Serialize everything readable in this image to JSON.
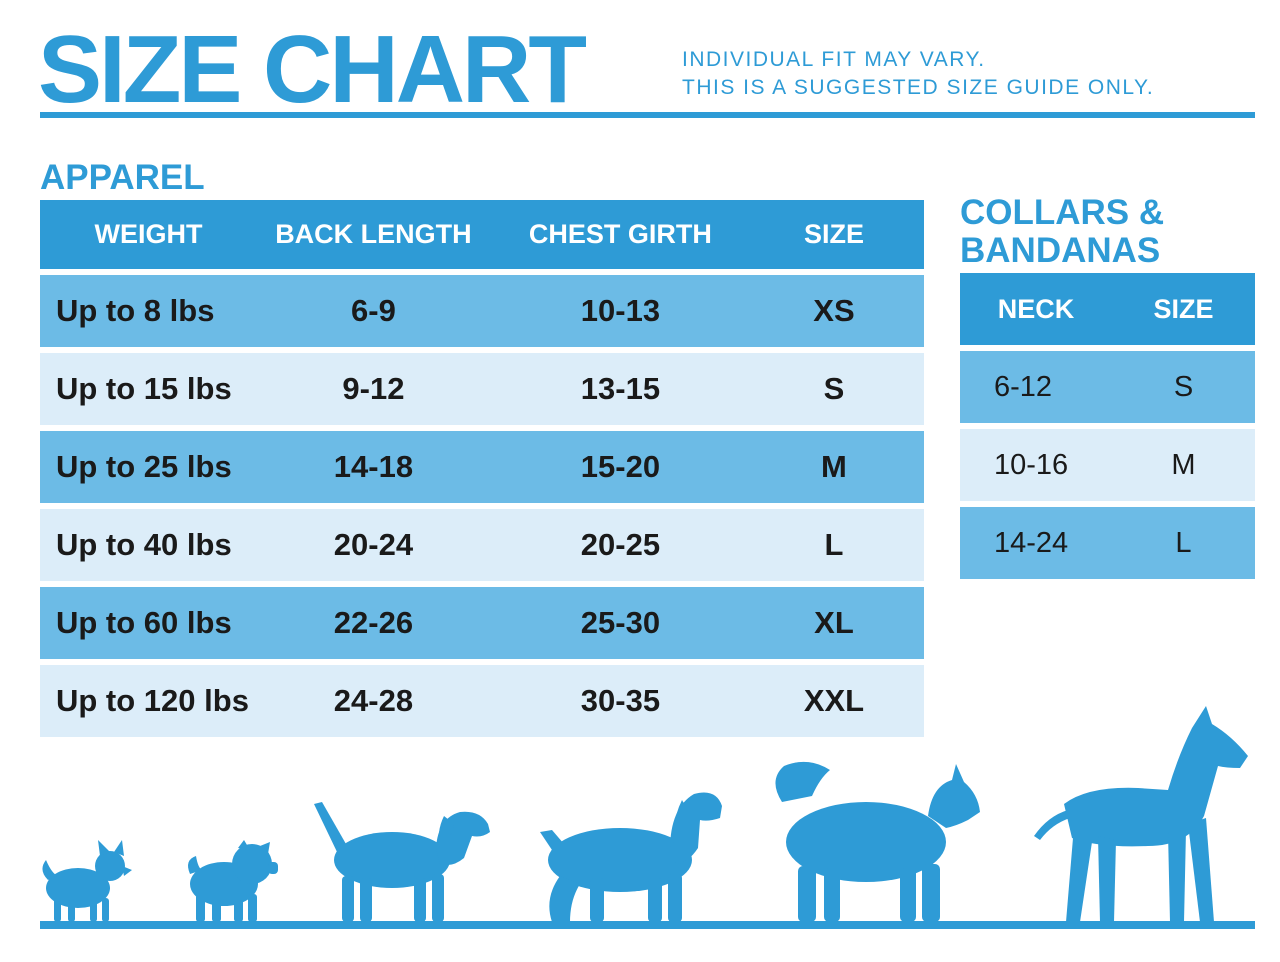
{
  "header": {
    "title": "SIZE CHART",
    "note_line1": "INDIVIDUAL FIT MAY VARY.",
    "note_line2": "THIS IS A SUGGESTED SIZE GUIDE ONLY."
  },
  "apparel": {
    "title": "APPAREL",
    "columns": [
      "WEIGHT",
      "BACK LENGTH",
      "CHEST GIRTH",
      "SIZE"
    ],
    "rows": [
      [
        "Up to 8 lbs",
        "6-9",
        "10-13",
        "XS"
      ],
      [
        "Up to 15 lbs",
        "9-12",
        "13-15",
        "S"
      ],
      [
        "Up to 25 lbs",
        "14-18",
        "15-20",
        "M"
      ],
      [
        "Up to 40 lbs",
        "20-24",
        "20-25",
        "L"
      ],
      [
        "Up to 60 lbs",
        "22-26",
        "25-30",
        "XL"
      ],
      [
        "Up to 120 lbs",
        "24-28",
        "30-35",
        "XXL"
      ]
    ]
  },
  "collars": {
    "title_line1": "COLLARS &",
    "title_line2": "BANDANAS",
    "columns": [
      "NECK",
      "SIZE"
    ],
    "rows": [
      [
        "6-12",
        "S"
      ],
      [
        "10-16",
        "M"
      ],
      [
        "14-24",
        "L"
      ]
    ]
  },
  "dogs": [
    "chihuahua-silhouette",
    "pug-silhouette",
    "beagle-silhouette",
    "spaniel-silhouette",
    "husky-silhouette",
    "great-dane-silhouette"
  ],
  "colors": {
    "accent": "#2e9bd6",
    "row_dark": "#6cbbe6",
    "row_light": "#dcedf9"
  }
}
